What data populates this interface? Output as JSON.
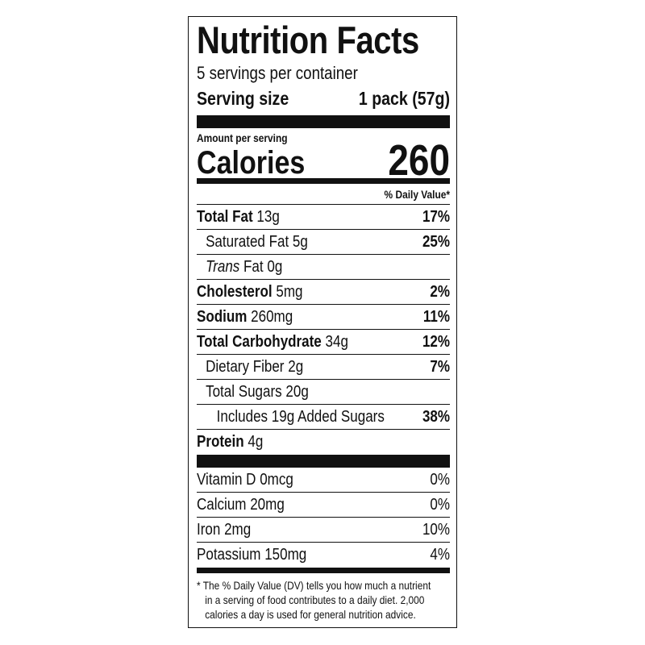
{
  "header": {
    "title": "Nutrition Facts",
    "servings": "5 servings per container",
    "serving_size_label": "Serving size",
    "serving_size_value": "1 pack (57g)"
  },
  "calories": {
    "amount_per_serving": "Amount per serving",
    "label": "Calories",
    "value": "260"
  },
  "daily_value_header": "% Daily Value*",
  "nutrients": [
    {
      "name": "Total Fat",
      "amount": "13g",
      "dv": "17%"
    },
    {
      "name": "Saturated Fat",
      "amount": "5g",
      "dv": "25%"
    },
    {
      "name_italic": "Trans",
      "name": "Fat",
      "amount": "0g"
    },
    {
      "name": "Cholesterol",
      "amount": "5mg",
      "dv": "2%"
    },
    {
      "name": "Sodium",
      "amount": "260mg",
      "dv": "11%"
    },
    {
      "name": "Total Carbohydrate",
      "amount": "34g",
      "dv": "12%"
    },
    {
      "name": "Dietary Fiber",
      "amount": "2g",
      "dv": "7%"
    },
    {
      "name": "Total Sugars",
      "amount": "20g"
    },
    {
      "name": "Includes 19g Added Sugars",
      "dv": "38%"
    },
    {
      "name": "Protein",
      "amount": "4g"
    }
  ],
  "vitamins": [
    {
      "name": "Vitamin D",
      "amount": "0mcg",
      "dv": "0%"
    },
    {
      "name": "Calcium",
      "amount": "20mg",
      "dv": "0%"
    },
    {
      "name": "Iron",
      "amount": "2mg",
      "dv": "10%"
    },
    {
      "name": "Potassium",
      "amount": "150mg",
      "dv": "4%"
    }
  ],
  "footnote": [
    "* The % Daily Value (DV) tells you how much a nutrient",
    "in a serving of food contributes to a daily diet. 2,000",
    "calories a day is used for general nutrition advice."
  ]
}
